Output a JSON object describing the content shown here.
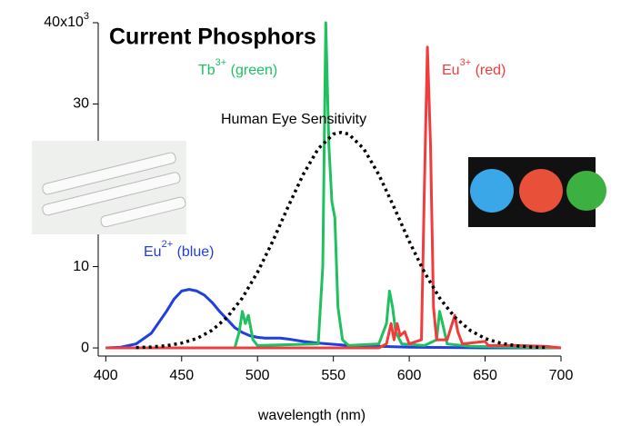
{
  "chart_data": {
    "type": "line",
    "title": "Current Phosphors",
    "x_label": "wavelength (nm)",
    "xlim": [
      395,
      700
    ],
    "xticks": [
      400,
      450,
      500,
      550,
      600,
      650,
      700
    ],
    "ylim": [
      -1,
      40
    ],
    "yticks": [
      0,
      10,
      30,
      {
        "value": 40,
        "label": "40x10",
        "exponent": "3"
      }
    ],
    "series": [
      {
        "ion": "Eu",
        "charge": "2+",
        "label": "(blue)",
        "color": "#1f3fe0",
        "x": [
          400,
          410,
          420,
          430,
          440,
          445,
          450,
          455,
          460,
          465,
          470,
          475,
          480,
          485,
          490,
          495,
          500,
          505,
          510,
          515,
          520,
          530,
          540,
          560,
          580,
          600,
          650,
          700
        ],
        "values": [
          0,
          0.1,
          0.5,
          1.8,
          4.5,
          6,
          7,
          7.2,
          7,
          6.5,
          5.6,
          4.5,
          3.5,
          2.5,
          1.9,
          1.5,
          1.3,
          1.2,
          1.2,
          1.2,
          1.1,
          0.8,
          0.6,
          0.3,
          0.2,
          0.1,
          0,
          0
        ]
      },
      {
        "ion": "Tb",
        "charge": "3+",
        "label": "(green)",
        "color": "#1fc060",
        "x": [
          400,
          485,
          488,
          490,
          492,
          494,
          497,
          500,
          540,
          543,
          545,
          547,
          549,
          551,
          553,
          556,
          560,
          580,
          585,
          587,
          589,
          591,
          595,
          610,
          618,
          620,
          622,
          625,
          640,
          700
        ],
        "values": [
          0,
          0,
          2,
          4.5,
          3,
          4,
          1,
          0.3,
          0.5,
          10,
          40,
          25,
          18,
          16,
          5,
          1,
          0.3,
          0.5,
          3,
          7,
          5,
          2,
          0.5,
          0.3,
          1,
          4.5,
          3,
          0.5,
          0.2,
          0
        ]
      },
      {
        "ion": "Eu",
        "charge": "3+",
        "label": "(red)",
        "color": "#f03c3c",
        "x": [
          400,
          580,
          585,
          588,
          590,
          592,
          594,
          597,
          600,
          608,
          610,
          612,
          614,
          616,
          618,
          625,
          630,
          632,
          635,
          650,
          652,
          670,
          690,
          700
        ],
        "values": [
          0,
          0,
          0.5,
          3,
          1,
          3,
          1.5,
          2,
          0.5,
          1,
          20,
          37,
          25,
          5,
          1,
          1,
          4,
          2,
          0.5,
          0.8,
          0.3,
          0.3,
          0.2,
          0
        ]
      },
      {
        "name": "Human Eye Sensitivity",
        "color": "#000000",
        "dashed": true,
        "x": [
          420,
          430,
          440,
          450,
          460,
          470,
          480,
          490,
          500,
          510,
          520,
          530,
          540,
          550,
          555,
          560,
          570,
          580,
          590,
          600,
          610,
          620,
          630,
          640,
          650,
          660,
          670,
          680,
          690
        ],
        "values": [
          0.05,
          0.12,
          0.27,
          0.6,
          1.16,
          2.17,
          3.78,
          6.14,
          9.3,
          13.1,
          17.3,
          21.3,
          24.5,
          26.3,
          26.5,
          26.3,
          24.5,
          21.3,
          17.3,
          13.1,
          9.3,
          6.14,
          3.78,
          2.17,
          1.16,
          0.6,
          0.27,
          0.12,
          0.05
        ]
      }
    ]
  }
}
